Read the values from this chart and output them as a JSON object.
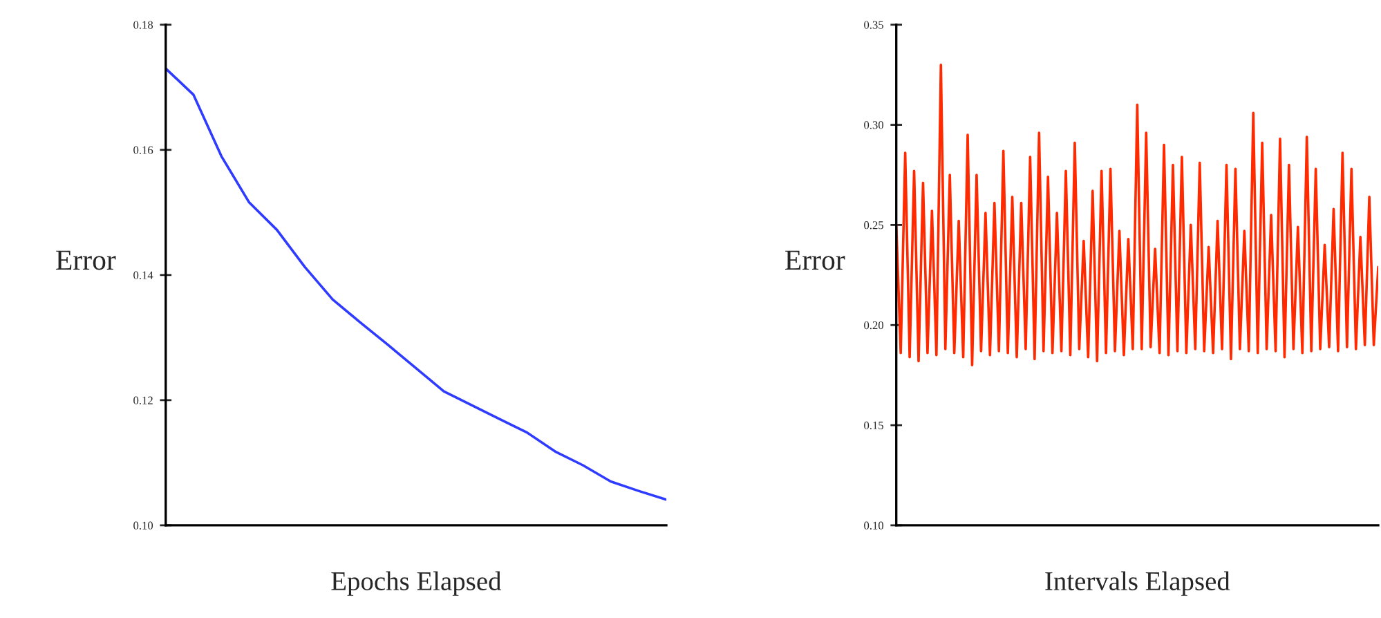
{
  "chart_data": [
    {
      "type": "line",
      "xlabel": "Epochs Elapsed",
      "ylabel": "Error",
      "tick_labels": "y",
      "grid": false,
      "categories": [
        null,
        null,
        null,
        null,
        null,
        null,
        null,
        null,
        null,
        null,
        null,
        null,
        null,
        null,
        null,
        null,
        null,
        null,
        null
      ],
      "series": [
        {
          "color": "#2f3cff",
          "values": [
            0.173,
            0.1688,
            0.159,
            0.1516,
            0.1472,
            0.1413,
            0.1361,
            0.1324,
            0.1288,
            0.1251,
            0.1214,
            0.1192,
            0.117,
            0.1148,
            0.1118,
            0.1096,
            0.107,
            0.1055,
            0.1041
          ]
        }
      ],
      "ylim": [
        0.1,
        0.18
      ],
      "yticks": [
        {
          "value": 0.1,
          "label": "0.10"
        },
        {
          "value": 0.12,
          "label": "0.12"
        },
        {
          "value": 0.14,
          "label": "0.14"
        },
        {
          "value": 0.16,
          "label": "0.16"
        },
        {
          "value": 0.18,
          "label": "0.18"
        }
      ]
    },
    {
      "type": "line",
      "xlabel": "Intervals Elapsed",
      "ylabel": "Error",
      "tick_labels": "y",
      "grid": false,
      "categories": [
        null,
        null,
        null,
        null,
        null,
        null,
        null,
        null,
        null,
        null,
        null,
        null,
        null,
        null,
        null,
        null,
        null,
        null,
        null,
        null,
        null,
        null,
        null,
        null,
        null,
        null,
        null,
        null,
        null,
        null,
        null,
        null,
        null,
        null,
        null,
        null,
        null,
        null,
        null,
        null,
        null,
        null,
        null,
        null,
        null,
        null,
        null,
        null,
        null,
        null,
        null,
        null,
        null,
        null,
        null,
        null,
        null,
        null,
        null,
        null,
        null,
        null,
        null,
        null,
        null,
        null,
        null,
        null,
        null,
        null,
        null,
        null,
        null,
        null,
        null,
        null,
        null,
        null,
        null,
        null,
        null,
        null,
        null,
        null,
        null,
        null,
        null,
        null,
        null,
        null,
        null,
        null,
        null,
        null,
        null,
        null,
        null,
        null,
        null,
        null,
        null,
        null,
        null,
        null,
        null,
        null,
        null,
        null,
        null
      ],
      "series": [
        {
          "color": "#ff2a00",
          "values": [
            0.25,
            0.186,
            0.286,
            0.184,
            0.277,
            0.182,
            0.271,
            0.186,
            0.257,
            0.185,
            0.33,
            0.188,
            0.275,
            0.186,
            0.252,
            0.184,
            0.295,
            0.18,
            0.275,
            0.187,
            0.256,
            0.185,
            0.261,
            0.187,
            0.287,
            0.186,
            0.264,
            0.184,
            0.261,
            0.188,
            0.284,
            0.183,
            0.296,
            0.187,
            0.274,
            0.186,
            0.256,
            0.187,
            0.277,
            0.185,
            0.291,
            0.188,
            0.242,
            0.184,
            0.267,
            0.182,
            0.277,
            0.186,
            0.278,
            0.187,
            0.247,
            0.185,
            0.243,
            0.188,
            0.31,
            0.188,
            0.296,
            0.189,
            0.238,
            0.186,
            0.29,
            0.185,
            0.28,
            0.187,
            0.284,
            0.186,
            0.25,
            0.188,
            0.281,
            0.187,
            0.239,
            0.186,
            0.252,
            0.188,
            0.28,
            0.183,
            0.278,
            0.188,
            0.247,
            0.187,
            0.306,
            0.186,
            0.291,
            0.188,
            0.255,
            0.187,
            0.293,
            0.184,
            0.28,
            0.188,
            0.249,
            0.186,
            0.294,
            0.187,
            0.278,
            0.188,
            0.24,
            0.189,
            0.258,
            0.187,
            0.286,
            0.189,
            0.278,
            0.188,
            0.244,
            0.19,
            0.264,
            0.19,
            0.229
          ]
        }
      ],
      "ylim": [
        0.1,
        0.35
      ],
      "yticks": [
        {
          "value": 0.1,
          "label": "0.10"
        },
        {
          "value": 0.15,
          "label": "0.15"
        },
        {
          "value": 0.2,
          "label": "0.20"
        },
        {
          "value": 0.25,
          "label": "0.25"
        },
        {
          "value": 0.3,
          "label": "0.30"
        },
        {
          "value": 0.35,
          "label": "0.35"
        }
      ]
    }
  ]
}
